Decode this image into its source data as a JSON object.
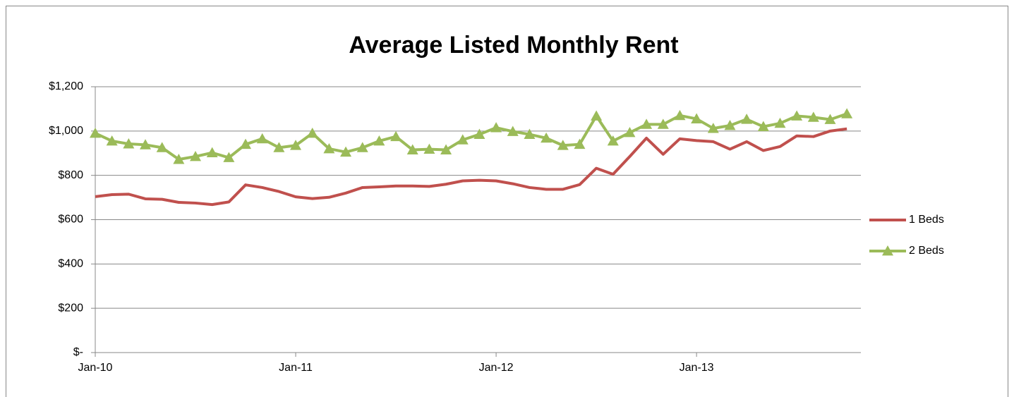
{
  "chart_data": {
    "type": "line",
    "title": "Average Listed Monthly Rent",
    "categories": [
      "Jan-10",
      null,
      null,
      null,
      null,
      null,
      null,
      null,
      null,
      null,
      null,
      null,
      "Jan-11",
      null,
      null,
      null,
      null,
      null,
      null,
      null,
      null,
      null,
      null,
      null,
      "Jan-12",
      null,
      null,
      null,
      null,
      null,
      null,
      null,
      null,
      null,
      null,
      null,
      "Jan-13",
      null,
      null,
      null,
      null,
      null,
      null,
      null,
      null,
      null
    ],
    "series": [
      {
        "name": "1 Beds",
        "color": "#c0504d",
        "values": [
          704,
          713,
          715,
          694,
          692,
          678,
          675,
          668,
          680,
          757,
          745,
          727,
          703,
          695,
          701,
          720,
          745,
          748,
          752,
          752,
          750,
          760,
          775,
          778,
          775,
          762,
          745,
          737,
          737,
          758,
          832,
          805,
          885,
          968,
          895,
          965,
          957,
          952,
          918,
          952,
          912,
          930,
          978,
          975,
          1000,
          1010
        ]
      },
      {
        "name": "2 Beds",
        "color": "#9bbb59",
        "marker": "triangle",
        "values": [
          990,
          955,
          942,
          938,
          925,
          872,
          885,
          902,
          880,
          940,
          965,
          925,
          935,
          990,
          920,
          905,
          925,
          955,
          975,
          915,
          918,
          915,
          960,
          985,
          1015,
          998,
          985,
          968,
          935,
          940,
          1068,
          955,
          993,
          1030,
          1030,
          1070,
          1055,
          1012,
          1025,
          1053,
          1020,
          1035,
          1068,
          1062,
          1052,
          1078
        ]
      }
    ],
    "ylim": [
      0,
      1200
    ],
    "yticks": [
      {
        "value": 0,
        "label": "$-"
      },
      {
        "value": 200,
        "label": "$200"
      },
      {
        "value": 400,
        "label": "$400"
      },
      {
        "value": 600,
        "label": "$600"
      },
      {
        "value": 800,
        "label": "$800"
      },
      {
        "value": 1000,
        "label": "$1,000"
      },
      {
        "value": 1200,
        "label": "$1,200"
      }
    ],
    "grid": true,
    "legend": "right"
  }
}
